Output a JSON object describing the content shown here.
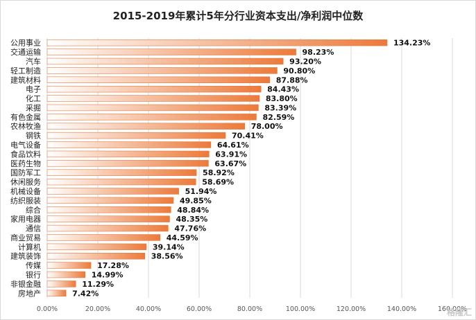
{
  "chart_data": {
    "type": "bar",
    "orientation": "horizontal",
    "title": "2015-2019年累计5年分行业资本支出/净利润中位数",
    "categories": [
      "公用事业",
      "交通运输",
      "汽车",
      "轻工制造",
      "建筑材料",
      "电子",
      "化工",
      "采掘",
      "有色金属",
      "农林牧渔",
      "钢铁",
      "电气设备",
      "食品饮料",
      "医药生物",
      "国防军工",
      "休闲服务",
      "机械设备",
      "纺织服装",
      "综合",
      "家用电器",
      "通信",
      "商业贸易",
      "计算机",
      "建筑装饰",
      "传媒",
      "银行",
      "非银金融",
      "房地产"
    ],
    "values": [
      134.23,
      98.23,
      93.2,
      90.8,
      87.88,
      84.43,
      83.8,
      83.39,
      82.59,
      78.0,
      70.41,
      64.61,
      63.91,
      63.67,
      58.92,
      58.69,
      51.94,
      49.85,
      48.84,
      48.35,
      47.76,
      44.59,
      39.14,
      38.56,
      17.28,
      14.99,
      11.29,
      7.42
    ],
    "value_labels": [
      "134.23%",
      "98.23%",
      "93.20%",
      "90.80%",
      "87.88%",
      "84.43%",
      "83.80%",
      "83.39%",
      "82.59%",
      "78.00%",
      "70.41%",
      "64.61%",
      "63.91%",
      "63.67%",
      "58.92%",
      "58.69%",
      "51.94%",
      "49.85%",
      "48.84%",
      "48.35%",
      "47.76%",
      "44.59%",
      "39.14%",
      "38.56%",
      "17.28%",
      "14.99%",
      "11.29%",
      "7.42%"
    ],
    "xlim": [
      0,
      160
    ],
    "xticks": [
      0,
      20,
      40,
      60,
      80,
      100,
      120,
      140,
      160
    ],
    "xtick_labels": [
      "0.00%",
      "20.00%",
      "40.00%",
      "60.00%",
      "80.00%",
      "100.00%",
      "120.00%",
      "140.00%",
      "160.00%"
    ],
    "grid": true,
    "bar_gradient": [
      "#ffffff",
      "#ec7a3a"
    ],
    "bar_border": "#e07a40"
  },
  "watermark": "格隆汇"
}
